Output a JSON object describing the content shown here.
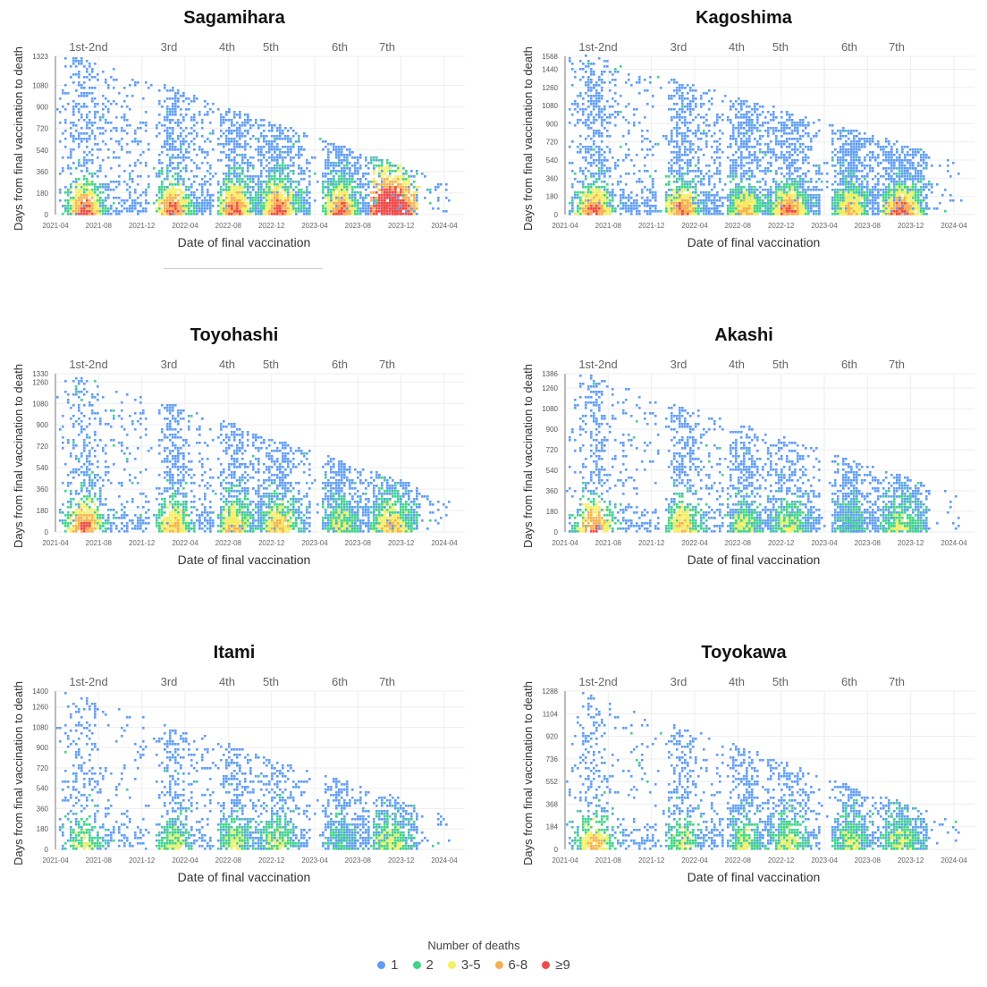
{
  "colors": {
    "1": "#5f9df5",
    "2": "#3fd48a",
    "3-5": "#f5f060",
    "6-8": "#f7b050",
    "≥9": "#ef4b4b"
  },
  "legend": {
    "title": "Number of deaths",
    "items": [
      {
        "label": "1",
        "color": "#5f9df5"
      },
      {
        "label": "2",
        "color": "#3fd48a"
      },
      {
        "label": "3-5",
        "color": "#f5f060"
      },
      {
        "label": "6-8",
        "color": "#f7b050"
      },
      {
        "label": "≥9",
        "color": "#ef4b4b"
      }
    ]
  },
  "chart_data": [
    {
      "type": "heatmap",
      "title": "Sagamihara",
      "xlabel": "Date of final vaccination",
      "ylabel": "Days from final vaccination to death",
      "xticks": [
        "2021-04",
        "2021-08",
        "2021-12",
        "2022-04",
        "2022-08",
        "2022-12",
        "2023-04",
        "2023-08",
        "2023-12",
        "2024-04"
      ],
      "yticks": [
        0,
        180,
        360,
        540,
        720,
        900,
        1080,
        1323
      ],
      "ylim": [
        0,
        1323
      ],
      "grid": true,
      "rounds": [
        {
          "label": "1st-2nd",
          "from": "2021-04",
          "to": "2021-12",
          "max_deaths": "≥9"
        },
        {
          "label": "3rd",
          "from": "2022-01",
          "to": "2022-06",
          "max_deaths": "≥9"
        },
        {
          "label": "4th",
          "from": "2022-07",
          "to": "2022-10",
          "max_deaths": "≥9"
        },
        {
          "label": "5th",
          "from": "2022-10",
          "to": "2023-03",
          "max_deaths": "≥9"
        },
        {
          "label": "6th",
          "from": "2023-05",
          "to": "2023-08",
          "max_deaths": "≥9"
        },
        {
          "label": "7th",
          "from": "2023-09",
          "to": "2024-04",
          "max_deaths": "≥9"
        }
      ]
    },
    {
      "type": "heatmap",
      "title": "Kagoshima",
      "xlabel": "Date of final vaccination",
      "ylabel": "Days from final vaccination to death",
      "xticks": [
        "2021-04",
        "2021-08",
        "2021-12",
        "2022-04",
        "2022-08",
        "2022-12",
        "2023-04",
        "2023-08",
        "2023-12",
        "2024-04"
      ],
      "yticks": [
        0,
        180,
        360,
        540,
        720,
        900,
        1080,
        1260,
        1440,
        1568
      ],
      "ylim": [
        0,
        1568
      ],
      "grid": true,
      "rounds": [
        {
          "label": "1st-2nd",
          "from": "2021-04",
          "to": "2021-12",
          "max_deaths": "≥9"
        },
        {
          "label": "3rd",
          "from": "2022-01",
          "to": "2022-06",
          "max_deaths": "≥9"
        },
        {
          "label": "4th",
          "from": "2022-07",
          "to": "2022-10",
          "max_deaths": "6-8"
        },
        {
          "label": "5th",
          "from": "2022-10",
          "to": "2023-03",
          "max_deaths": "≥9"
        },
        {
          "label": "6th",
          "from": "2023-05",
          "to": "2023-08",
          "max_deaths": "6-8"
        },
        {
          "label": "7th",
          "from": "2023-09",
          "to": "2024-03",
          "max_deaths": "≥9"
        }
      ]
    },
    {
      "type": "heatmap",
      "title": "Toyohashi",
      "xlabel": "Date of final vaccination",
      "ylabel": "Days from final vaccination to death",
      "xticks": [
        "2021-04",
        "2021-08",
        "2021-12",
        "2022-04",
        "2022-08",
        "2022-12",
        "2023-04",
        "2023-08",
        "2023-12",
        "2024-04"
      ],
      "yticks": [
        0,
        180,
        360,
        540,
        720,
        900,
        1080,
        1260,
        1330
      ],
      "ylim": [
        0,
        1330
      ],
      "grid": true,
      "rounds": [
        {
          "label": "1st-2nd",
          "from": "2021-04",
          "to": "2021-12",
          "max_deaths": "≥9"
        },
        {
          "label": "3rd",
          "from": "2022-01",
          "to": "2022-06",
          "max_deaths": "6-8"
        },
        {
          "label": "4th",
          "from": "2022-07",
          "to": "2022-10",
          "max_deaths": "6-8"
        },
        {
          "label": "5th",
          "from": "2022-10",
          "to": "2023-03",
          "max_deaths": "6-8"
        },
        {
          "label": "6th",
          "from": "2023-05",
          "to": "2023-08",
          "max_deaths": "3-5"
        },
        {
          "label": "7th",
          "from": "2023-09",
          "to": "2024-04",
          "max_deaths": "6-8"
        }
      ]
    },
    {
      "type": "heatmap",
      "title": "Akashi",
      "xlabel": "Date of final vaccination",
      "ylabel": "Days from final vaccination to death",
      "xticks": [
        "2021-04",
        "2021-08",
        "2021-12",
        "2022-04",
        "2022-08",
        "2022-12",
        "2023-04",
        "2023-08",
        "2023-12",
        "2024-04"
      ],
      "yticks": [
        0,
        180,
        360,
        540,
        720,
        900,
        1080,
        1260,
        1386
      ],
      "ylim": [
        0,
        1386
      ],
      "grid": true,
      "rounds": [
        {
          "label": "1st-2nd",
          "from": "2021-04",
          "to": "2021-12",
          "max_deaths": "≥9"
        },
        {
          "label": "3rd",
          "from": "2022-01",
          "to": "2022-06",
          "max_deaths": "6-8"
        },
        {
          "label": "4th",
          "from": "2022-07",
          "to": "2022-10",
          "max_deaths": "3-5"
        },
        {
          "label": "5th",
          "from": "2022-10",
          "to": "2023-03",
          "max_deaths": "3-5"
        },
        {
          "label": "6th",
          "from": "2023-05",
          "to": "2023-08",
          "max_deaths": "2"
        },
        {
          "label": "7th",
          "from": "2023-09",
          "to": "2024-03",
          "max_deaths": "3-5"
        }
      ]
    },
    {
      "type": "heatmap",
      "title": "Itami",
      "xlabel": "Date of final vaccination",
      "ylabel": "Days from final vaccination to death",
      "xticks": [
        "2021-04",
        "2021-08",
        "2021-12",
        "2022-04",
        "2022-08",
        "2022-12",
        "2023-04",
        "2023-08",
        "2023-12",
        "2024-04"
      ],
      "yticks": [
        0,
        180,
        360,
        540,
        720,
        900,
        1080,
        1260,
        1400
      ],
      "ylim": [
        0,
        1400
      ],
      "grid": true,
      "rounds": [
        {
          "label": "1st-2nd",
          "from": "2021-04",
          "to": "2021-12",
          "max_deaths": "3-5"
        },
        {
          "label": "3rd",
          "from": "2022-01",
          "to": "2022-06",
          "max_deaths": "3-5"
        },
        {
          "label": "4th",
          "from": "2022-07",
          "to": "2022-10",
          "max_deaths": "3-5"
        },
        {
          "label": "5th",
          "from": "2022-10",
          "to": "2023-03",
          "max_deaths": "3-5"
        },
        {
          "label": "6th",
          "from": "2023-05",
          "to": "2023-08",
          "max_deaths": "2"
        },
        {
          "label": "7th",
          "from": "2023-09",
          "to": "2024-03",
          "max_deaths": "3-5"
        }
      ]
    },
    {
      "type": "heatmap",
      "title": "Toyokawa",
      "xlabel": "Date of final vaccination",
      "ylabel": "Days from final vaccination to death",
      "xticks": [
        "2021-04",
        "2021-08",
        "2021-12",
        "2022-04",
        "2022-08",
        "2022-12",
        "2023-04",
        "2023-08",
        "2023-12",
        "2024-04"
      ],
      "yticks": [
        0,
        184,
        368,
        552,
        736,
        920,
        1104,
        1288
      ],
      "ylim": [
        0,
        1288
      ],
      "grid": true,
      "rounds": [
        {
          "label": "1st-2nd",
          "from": "2021-04",
          "to": "2021-12",
          "max_deaths": "6-8"
        },
        {
          "label": "3rd",
          "from": "2022-01",
          "to": "2022-06",
          "max_deaths": "3-5"
        },
        {
          "label": "4th",
          "from": "2022-07",
          "to": "2022-10",
          "max_deaths": "3-5"
        },
        {
          "label": "5th",
          "from": "2022-10",
          "to": "2023-03",
          "max_deaths": "3-5"
        },
        {
          "label": "6th",
          "from": "2023-05",
          "to": "2023-08",
          "max_deaths": "3-5"
        },
        {
          "label": "7th",
          "from": "2023-09",
          "to": "2024-01",
          "max_deaths": "3-5"
        }
      ]
    }
  ]
}
